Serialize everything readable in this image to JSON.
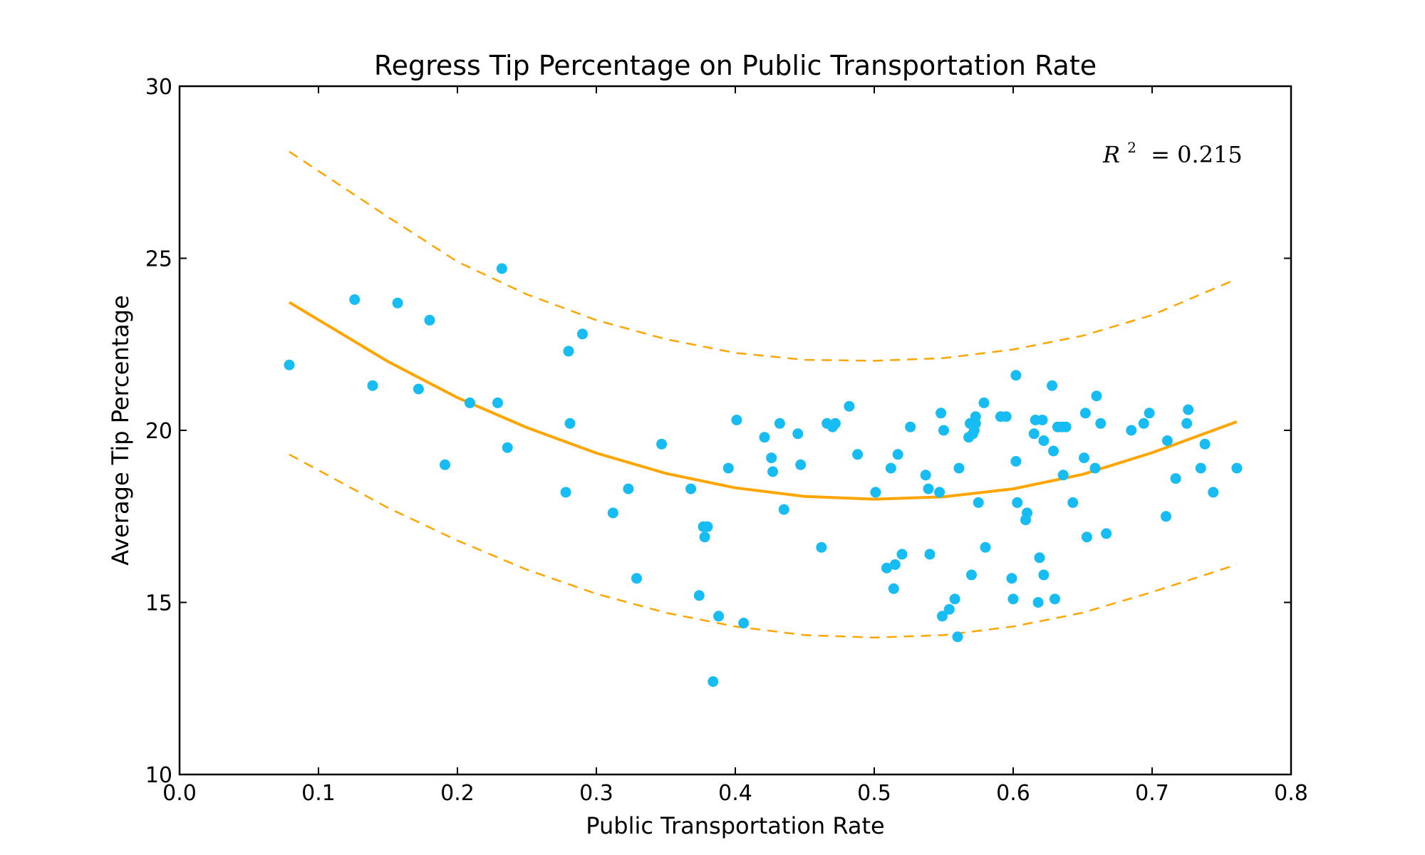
{
  "chart_data": {
    "type": "scatter",
    "title": "Regress Tip Percentage on Public Transportation Rate",
    "xlabel": "Public Transportation Rate",
    "ylabel": "Average Tip Percentage",
    "xlim": [
      0.0,
      0.8
    ],
    "ylim": [
      10,
      30
    ],
    "xticks": [
      "0.0",
      "0.1",
      "0.2",
      "0.3",
      "0.4",
      "0.5",
      "0.6",
      "0.7",
      "0.8"
    ],
    "yticks": [
      "10",
      "15",
      "20",
      "25",
      "30"
    ],
    "annotation": {
      "label": "R",
      "sup": "2",
      "eq": "=",
      "value": "0.215"
    },
    "grid": false,
    "colors": {
      "points": "#17BDF2",
      "fit": "#FFA500"
    },
    "series": [
      {
        "type": "scatter",
        "points": [
          [
            0.079,
            21.9
          ],
          [
            0.126,
            23.8
          ],
          [
            0.139,
            21.3
          ],
          [
            0.157,
            23.7
          ],
          [
            0.172,
            21.2
          ],
          [
            0.18,
            23.2
          ],
          [
            0.191,
            19.0
          ],
          [
            0.209,
            20.8
          ],
          [
            0.229,
            20.8
          ],
          [
            0.232,
            24.7
          ],
          [
            0.236,
            19.5
          ],
          [
            0.278,
            18.2
          ],
          [
            0.28,
            22.3
          ],
          [
            0.281,
            20.2
          ],
          [
            0.29,
            22.8
          ],
          [
            0.312,
            17.6
          ],
          [
            0.323,
            18.3
          ],
          [
            0.329,
            15.7
          ],
          [
            0.347,
            19.6
          ],
          [
            0.368,
            18.3
          ],
          [
            0.374,
            15.2
          ],
          [
            0.377,
            17.2
          ],
          [
            0.378,
            16.9
          ],
          [
            0.38,
            17.2
          ],
          [
            0.384,
            12.7
          ],
          [
            0.388,
            14.6
          ],
          [
            0.395,
            18.9
          ],
          [
            0.401,
            20.3
          ],
          [
            0.406,
            14.4
          ],
          [
            0.421,
            19.8
          ],
          [
            0.426,
            19.2
          ],
          [
            0.427,
            18.8
          ],
          [
            0.432,
            20.2
          ],
          [
            0.435,
            17.7
          ],
          [
            0.445,
            19.9
          ],
          [
            0.447,
            19.0
          ],
          [
            0.462,
            16.6
          ],
          [
            0.466,
            20.2
          ],
          [
            0.47,
            20.1
          ],
          [
            0.472,
            20.2
          ],
          [
            0.482,
            20.7
          ],
          [
            0.488,
            19.3
          ],
          [
            0.501,
            18.2
          ],
          [
            0.509,
            16.0
          ],
          [
            0.512,
            18.9
          ],
          [
            0.514,
            15.4
          ],
          [
            0.515,
            16.1
          ],
          [
            0.517,
            19.3
          ],
          [
            0.52,
            16.4
          ],
          [
            0.526,
            20.1
          ],
          [
            0.537,
            18.7
          ],
          [
            0.539,
            18.3
          ],
          [
            0.54,
            16.4
          ],
          [
            0.547,
            18.2
          ],
          [
            0.548,
            20.5
          ],
          [
            0.549,
            14.6
          ],
          [
            0.55,
            20.0
          ],
          [
            0.554,
            14.8
          ],
          [
            0.558,
            15.1
          ],
          [
            0.56,
            14.0
          ],
          [
            0.561,
            18.9
          ],
          [
            0.568,
            19.8
          ],
          [
            0.569,
            20.2
          ],
          [
            0.57,
            15.8
          ],
          [
            0.571,
            19.9
          ],
          [
            0.572,
            20.0
          ],
          [
            0.573,
            20.2
          ],
          [
            0.573,
            20.4
          ],
          [
            0.575,
            17.9
          ],
          [
            0.579,
            20.8
          ],
          [
            0.58,
            16.6
          ],
          [
            0.591,
            20.4
          ],
          [
            0.595,
            20.4
          ],
          [
            0.599,
            15.7
          ],
          [
            0.6,
            15.1
          ],
          [
            0.602,
            19.1
          ],
          [
            0.602,
            21.6
          ],
          [
            0.603,
            17.9
          ],
          [
            0.609,
            17.4
          ],
          [
            0.61,
            17.6
          ],
          [
            0.615,
            19.9
          ],
          [
            0.616,
            20.3
          ],
          [
            0.618,
            15.0
          ],
          [
            0.619,
            16.3
          ],
          [
            0.621,
            20.3
          ],
          [
            0.622,
            19.7
          ],
          [
            0.622,
            15.8
          ],
          [
            0.628,
            21.3
          ],
          [
            0.629,
            19.4
          ],
          [
            0.63,
            15.1
          ],
          [
            0.632,
            20.1
          ],
          [
            0.635,
            20.1
          ],
          [
            0.636,
            18.7
          ],
          [
            0.638,
            20.1
          ],
          [
            0.643,
            17.9
          ],
          [
            0.651,
            19.2
          ],
          [
            0.652,
            20.5
          ],
          [
            0.653,
            16.9
          ],
          [
            0.659,
            18.9
          ],
          [
            0.66,
            21.0
          ],
          [
            0.663,
            20.2
          ],
          [
            0.667,
            17.0
          ],
          [
            0.685,
            20.0
          ],
          [
            0.694,
            20.2
          ],
          [
            0.698,
            20.5
          ],
          [
            0.71,
            17.5
          ],
          [
            0.711,
            19.7
          ],
          [
            0.717,
            18.6
          ],
          [
            0.725,
            20.2
          ],
          [
            0.726,
            20.6
          ],
          [
            0.735,
            18.9
          ],
          [
            0.738,
            19.6
          ],
          [
            0.744,
            18.2
          ],
          [
            0.761,
            18.9
          ]
        ]
      },
      {
        "type": "line",
        "style": "solid",
        "x": [
          0.079,
          0.15,
          0.2,
          0.25,
          0.3,
          0.35,
          0.4,
          0.45,
          0.5,
          0.55,
          0.6,
          0.65,
          0.7,
          0.761
        ],
        "y": [
          23.72,
          22.0,
          20.95,
          20.08,
          19.34,
          18.75,
          18.33,
          18.08,
          18.0,
          18.07,
          18.3,
          18.72,
          19.35,
          20.25
        ]
      },
      {
        "type": "line",
        "style": "dashed",
        "x": [
          0.079,
          0.15,
          0.2,
          0.25,
          0.3,
          0.35,
          0.4,
          0.45,
          0.5,
          0.55,
          0.6,
          0.65,
          0.7,
          0.761
        ],
        "y": [
          28.1,
          26.2,
          24.9,
          23.95,
          23.2,
          22.65,
          22.25,
          22.05,
          22.02,
          22.1,
          22.35,
          22.75,
          23.35,
          24.4
        ]
      },
      {
        "type": "line",
        "style": "dashed",
        "x": [
          0.079,
          0.15,
          0.2,
          0.25,
          0.3,
          0.35,
          0.4,
          0.45,
          0.5,
          0.55,
          0.6,
          0.65,
          0.7,
          0.761
        ],
        "y": [
          19.3,
          17.75,
          16.8,
          15.95,
          15.25,
          14.7,
          14.3,
          14.05,
          13.98,
          14.05,
          14.3,
          14.7,
          15.3,
          16.1
        ]
      }
    ]
  }
}
